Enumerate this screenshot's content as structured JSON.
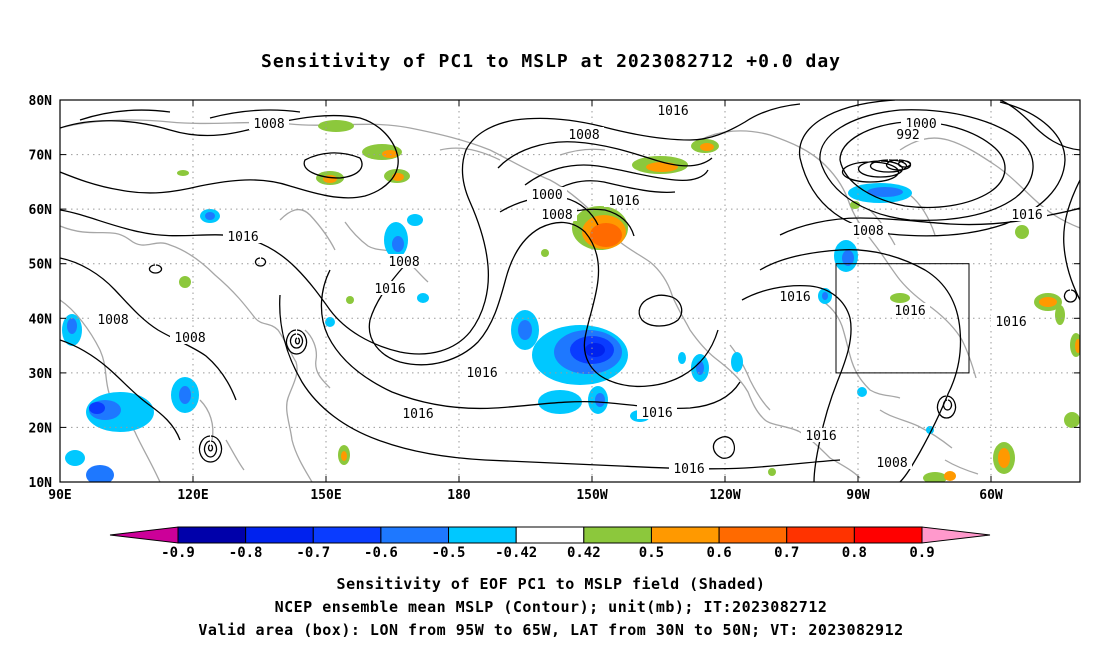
{
  "title": "Sensitivity of PC1 to MSLP at 2023082712 +0.0 day",
  "map": {
    "lat_labels": [
      "80N",
      "70N",
      "60N",
      "50N",
      "40N",
      "30N",
      "20N",
      "10N"
    ],
    "lon_labels": [
      "90E",
      "120E",
      "150E",
      "180",
      "150W",
      "120W",
      "90W",
      "60W"
    ],
    "lon_range": [
      "90E",
      "45W"
    ],
    "lat_range": [
      "10N",
      "80N"
    ],
    "grid": "dotted",
    "box": {
      "lon": [
        "95W",
        "65W"
      ],
      "lat": [
        "30N",
        "50N"
      ]
    }
  },
  "contour_labels": [
    "1008",
    "1016",
    "1008",
    "1000",
    "992",
    "1008",
    "1000",
    "1016",
    "1016",
    "1008",
    "1016",
    "1008",
    "1008",
    "1016",
    "1016",
    "1016",
    "1016",
    "1016",
    "1016",
    "1016",
    "1008",
    "1016",
    "1008"
  ],
  "colorbar": {
    "labels": [
      "-0.9",
      "-0.8",
      "-0.7",
      "-0.6",
      "-0.5",
      "-0.42",
      "0.42",
      "0.5",
      "0.6",
      "0.7",
      "0.8",
      "0.9"
    ],
    "colors": [
      "#cc0099",
      "#0000aa",
      "#0022ee",
      "#0a3cff",
      "#1e78ff",
      "#00c8ff",
      "#ffffff",
      "#8cc83c",
      "#ff9900",
      "#ff6a00",
      "#ff3300",
      "#ff0000",
      "#ff99cc"
    ]
  },
  "caption": [
    "Sensitivity of EOF PC1 to MSLP field (Shaded)",
    "NCEP ensemble mean MSLP (Contour); unit(mb); IT:2023082712",
    "Valid area (box): LON from 95W to 65W, LAT from 30N to 50N; VT: 2023082912"
  ]
}
